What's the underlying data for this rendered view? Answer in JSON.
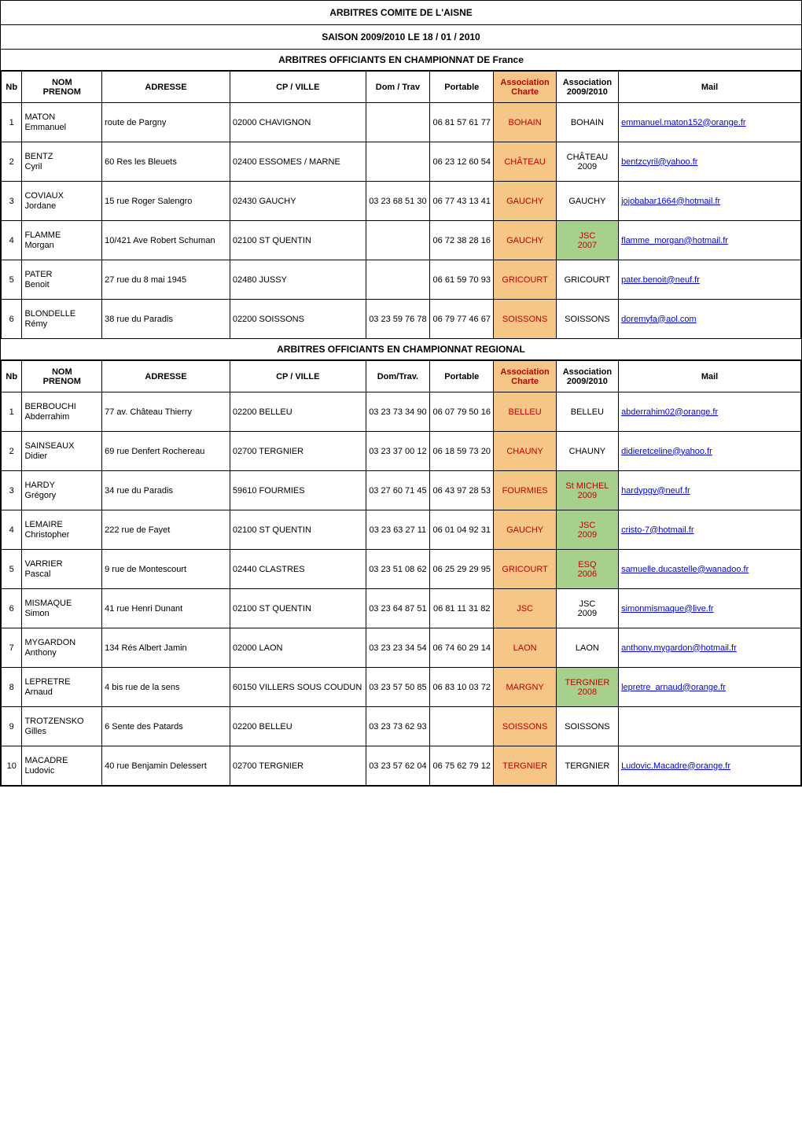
{
  "title": "ARBITRES COMITE DE L'AISNE",
  "subtitle": "SAISON 2009/2010    LE 18 / 01 / 2010",
  "headers": {
    "nb": "Nb",
    "nom_prenom": "NOM\nPRENOM",
    "adresse": "ADRESSE",
    "cp_ville": "CP / VILLE",
    "dom_trav": "Dom / Trav",
    "dom_trav2": "Dom/Trav.",
    "portable": "Portable",
    "assoc_charte": "Association\nCharte",
    "assoc_annee": "Association\n2009/2010",
    "mail": "Mail"
  },
  "colors": {
    "charte_bg": "#f5c686",
    "green_bg": "#a8d08d",
    "red_text": "#c00000",
    "black": "#000000"
  },
  "sections": [
    {
      "heading": "ARBITRES OFFICIANTS EN CHAMPIONNAT DE France",
      "dom_header_key": "dom_trav",
      "rows": [
        {
          "n": "1",
          "nom": "MATON",
          "prenom": "Emmanuel",
          "adresse": "route de Pargny",
          "cp": "02000 CHAVIGNON",
          "dom": "",
          "port": "06 81 57 61 77",
          "charte": "BOHAIN",
          "assoc": "BOHAIN",
          "assoc_green": false,
          "mail": "emmanuel.maton152@orange.fr"
        },
        {
          "n": "2",
          "nom": "BENTZ",
          "prenom": "Cyril",
          "adresse": "60 Res les Bleuets",
          "cp": "02400 ESSOMES / MARNE",
          "dom": "",
          "port": "06 23 12 60 54",
          "charte": "CHÂTEAU",
          "assoc": "CHÂTEAU\n2009",
          "assoc_green": false,
          "mail": "bentzcyril@yahoo.fr"
        },
        {
          "n": "3",
          "nom": "COVIAUX",
          "prenom": "Jordane",
          "adresse": "15 rue Roger Salengro",
          "cp": "02430 GAUCHY",
          "dom": "03 23 68 51 30",
          "port": "06 77 43 13 41",
          "charte": "GAUCHY",
          "assoc": "GAUCHY",
          "assoc_green": false,
          "mail": "jojobabar1664@hotmail.fr"
        },
        {
          "n": "4",
          "nom": "FLAMME",
          "prenom": "Morgan",
          "adresse": "10/421 Ave Robert  Schuman",
          "cp": "02100 ST QUENTIN",
          "dom": "",
          "port": "06 72 38 28 16",
          "charte": "GAUCHY",
          "assoc": "JSC\n2007",
          "assoc_green": true,
          "mail": "flamme_morgan@hotmail.fr"
        },
        {
          "n": "5",
          "nom": "PATER",
          "prenom": "Benoit",
          "adresse": "27 rue du 8 mai 1945",
          "cp": "02480 JUSSY",
          "dom": "",
          "port": "06 61 59 70 93",
          "charte": "GRICOURT",
          "assoc": "GRICOURT",
          "assoc_green": false,
          "mail": "pater.benoit@neuf.fr"
        },
        {
          "n": "6",
          "nom": "BLONDELLE",
          "prenom": "Rémy",
          "adresse": "38 rue du Paradis",
          "cp": "02200 SOISSONS",
          "dom": "03 23 59 76 78",
          "port": "06 79 77 46 67",
          "charte": "SOISSONS",
          "assoc": "SOISSONS",
          "assoc_green": false,
          "mail": "doremyfa@aol.com"
        }
      ]
    },
    {
      "heading": "ARBITRES OFFICIANTS EN CHAMPIONNAT REGIONAL",
      "dom_header_key": "dom_trav2",
      "rows": [
        {
          "n": "1",
          "nom": "BERBOUCHI",
          "prenom": "Abderrahim",
          "adresse": "77 av. Château Thierry",
          "cp": "02200 BELLEU",
          "dom": "03 23 73 34 90",
          "port": "06 07 79 50 16",
          "charte": "BELLEU",
          "assoc": "BELLEU",
          "assoc_green": false,
          "mail": "abderrahim02@orange.fr"
        },
        {
          "n": "2",
          "nom": "SAINSEAUX",
          "prenom": "Didier",
          "adresse": "69 rue Denfert Rochereau",
          "cp": "02700 TERGNIER",
          "dom": "03 23 37 00 12",
          "port": "06 18 59 73 20",
          "charte": "CHAUNY",
          "assoc": "CHAUNY",
          "assoc_green": false,
          "mail": "didieretceline@yahoo.fr"
        },
        {
          "n": "3",
          "nom": "HARDY",
          "prenom": "Grégory",
          "adresse": "34 rue du Paradis",
          "cp": "59610 FOURMIES",
          "dom": "03 27 60 71 45",
          "port": "06 43 97 28 53",
          "charte": "FOURMIES",
          "assoc": "St MICHEL\n2009",
          "assoc_green": true,
          "mail": "hardypgv@neuf.fr"
        },
        {
          "n": "4",
          "nom": "LEMAIRE",
          "prenom": "Christopher",
          "adresse": "222 rue de Fayet",
          "cp": "02100 ST QUENTIN",
          "dom": "03 23 63 27 11",
          "port": "06 01 04 92 31",
          "charte": "GAUCHY",
          "assoc": "JSC\n2009",
          "assoc_green": true,
          "mail": "cristo-7@hotmail.fr"
        },
        {
          "n": "5",
          "nom": "VARRIER",
          "prenom": "Pascal",
          "adresse": "9 rue de Montescourt",
          "cp": "02440 CLASTRES",
          "dom": "03 23 51 08 62",
          "port": "06 25 29 29 95",
          "charte": "GRICOURT",
          "assoc": "ESQ\n2006",
          "assoc_green": true,
          "mail": "samuelle.ducastelle@wanadoo.fr"
        },
        {
          "n": "6",
          "nom": "MISMAQUE",
          "prenom": "Simon",
          "adresse": "41 rue Henri Dunant",
          "cp": "02100 ST QUENTIN",
          "dom": "03 23 64 87 51",
          "port": "06 81 11 31 82",
          "charte": "JSC",
          "assoc": "JSC\n2009",
          "assoc_green": false,
          "mail": "simonmismaque@live.fr"
        },
        {
          "n": "7",
          "nom": "MYGARDON",
          "prenom": "Anthony",
          "adresse": "134 Rés Albert Jamin",
          "cp": "02000 LAON",
          "dom": "03 23 23 34 54",
          "port": "06 74 60 29 14",
          "charte": "LAON",
          "assoc": "LAON",
          "assoc_green": false,
          "mail": "anthony.mygardon@hotmail.fr"
        },
        {
          "n": "8",
          "nom": "LEPRETRE",
          "prenom": "Arnaud",
          "adresse": "4 bis rue de la sens",
          "cp": "60150 VILLERS SOUS COUDUN",
          "dom": "03 23 57 50 85",
          "port": "06 83 10 03 72",
          "charte": "MARGNY",
          "assoc": "TERGNIER\n2008",
          "assoc_green": true,
          "mail": "lepretre_arnaud@orange.fr"
        },
        {
          "n": "9",
          "nom": "TROTZENSKO",
          "prenom": "Gilles",
          "adresse": "6 Sente des Patards",
          "cp": "02200 BELLEU",
          "dom": "03 23 73 62 93",
          "port": "",
          "charte": "SOISSONS",
          "assoc": "SOISSONS",
          "assoc_green": false,
          "mail": ""
        },
        {
          "n": "10",
          "nom": "MACADRE",
          "prenom": "Ludovic",
          "adresse": "40 rue Benjamin Delessert",
          "cp": "02700 TERGNIER",
          "dom": "03 23 57 62 04",
          "port": "06 75 62 79 12",
          "charte": "TERGNIER",
          "assoc": "TERGNIER",
          "assoc_green": false,
          "mail": "Ludovic.Macadre@orange.fr"
        }
      ]
    }
  ]
}
